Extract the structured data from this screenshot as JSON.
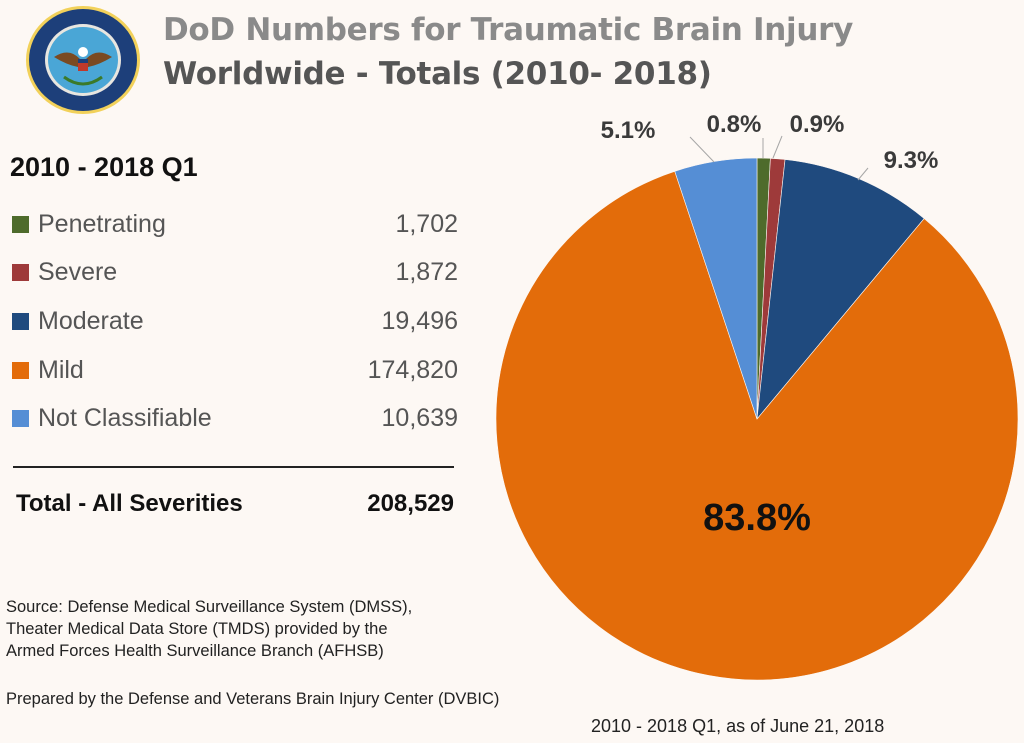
{
  "header": {
    "title_line1": "DoD Numbers for Traumatic Brain Injury",
    "title_line2": "Worldwide - Totals (2010- 2018)",
    "seal": "department-of-defense-seal"
  },
  "table": {
    "period": "2010 - 2018 Q1",
    "rows": [
      {
        "label": "Penetrating",
        "value": "1,702",
        "color": "#4e6b2b"
      },
      {
        "label": "Severe",
        "value": "1,872",
        "color": "#9e3a3a"
      },
      {
        "label": "Moderate",
        "value": "19,496",
        "color": "#1f4a7e"
      },
      {
        "label": "Mild",
        "value": "174,820",
        "color": "#e36c0a"
      },
      {
        "label": "Not Classifiable",
        "value": "10,639",
        "color": "#558ed5"
      }
    ],
    "total_label": "Total - All Severities",
    "total_value": "208,529"
  },
  "footer": {
    "source": [
      "Source: Defense Medical Surveillance System (DMSS),",
      "Theater Medical Data Store (TMDS) provided by the",
      "Armed Forces Health Surveillance Branch (AFHSB)"
    ],
    "prepared": "Prepared by the Defense and Veterans Brain Injury Center (DVBIC)",
    "as_of": "2010 - 2018 Q1, as of June 21, 2018"
  },
  "chart_data": {
    "type": "pie",
    "title": "DoD Numbers for Traumatic Brain Injury Worldwide - Totals (2010- 2018)",
    "start_angle": "12 o'clock, clockwise",
    "slices": [
      {
        "name": "Penetrating",
        "value": 1702,
        "percent": 0.8,
        "label": "0.8%",
        "color": "#4e6b2b"
      },
      {
        "name": "Severe",
        "value": 1872,
        "percent": 0.9,
        "label": "0.9%",
        "color": "#9e3a3a"
      },
      {
        "name": "Moderate",
        "value": 19496,
        "percent": 9.3,
        "label": "9.3%",
        "color": "#1f4a7e"
      },
      {
        "name": "Mild",
        "value": 174820,
        "percent": 83.8,
        "label": "83.8%",
        "color": "#e36c0a"
      },
      {
        "name": "Not Classifiable",
        "value": 10639,
        "percent": 5.1,
        "label": "5.1%",
        "color": "#558ed5"
      }
    ],
    "total": 208529
  }
}
